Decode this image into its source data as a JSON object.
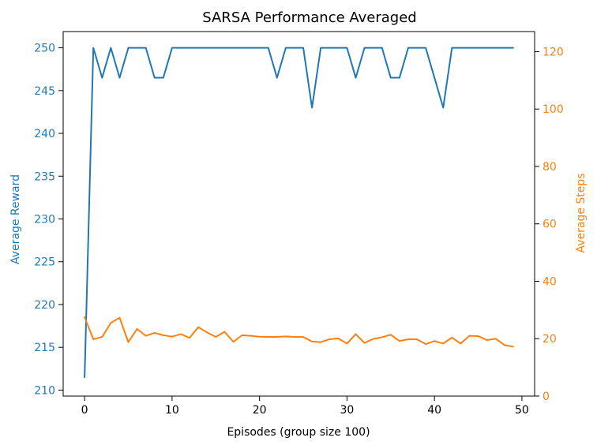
{
  "chart_data": {
    "type": "line",
    "title": "SARSA Performance Averaged",
    "xlabel": "Episodes (group size 100)",
    "ylabel_left": "Average Reward",
    "ylabel_right": "Average Steps",
    "x": [
      0,
      1,
      2,
      3,
      4,
      5,
      6,
      7,
      8,
      9,
      10,
      11,
      12,
      13,
      14,
      15,
      16,
      17,
      18,
      19,
      20,
      21,
      22,
      23,
      24,
      25,
      26,
      27,
      28,
      29,
      30,
      31,
      32,
      33,
      34,
      35,
      36,
      37,
      38,
      39,
      40,
      41,
      42,
      43,
      44,
      45,
      46,
      47,
      48,
      49
    ],
    "x_ticks": [
      0,
      10,
      20,
      30,
      40,
      50
    ],
    "xlim": [
      -2.45,
      51.45
    ],
    "left_axis": {
      "ylim": [
        209.3,
        251.9
      ],
      "ticks": [
        210,
        215,
        220,
        225,
        230,
        235,
        240,
        245,
        250
      ],
      "color": "#1f77b4"
    },
    "right_axis": {
      "ylim": [
        0,
        127
      ],
      "ticks": [
        0,
        20,
        40,
        60,
        80,
        100,
        120
      ],
      "color": "#ff7f0e"
    },
    "series": [
      {
        "name": "Average Reward",
        "axis": "left",
        "color": "#1f77b4",
        "values": [
          211.5,
          250,
          246.5,
          250,
          246.5,
          250,
          250,
          250,
          246.5,
          246.5,
          250,
          250,
          250,
          250,
          250,
          250,
          250,
          250,
          250,
          250,
          250,
          250,
          246.5,
          250,
          250,
          250,
          243,
          250,
          250,
          250,
          250,
          246.5,
          250,
          250,
          250,
          246.5,
          246.5,
          250,
          250,
          250,
          246.5,
          243,
          250,
          250,
          250,
          250,
          250,
          250,
          250,
          250
        ]
      },
      {
        "name": "Average Steps",
        "axis": "right",
        "color": "#ff7f0e",
        "values": [
          27.5,
          19.8,
          20.6,
          25.5,
          27.3,
          18.8,
          23.4,
          21.0,
          22.0,
          21.2,
          20.7,
          21.6,
          20.3,
          24.0,
          22.2,
          20.6,
          22.4,
          18.9,
          21.2,
          21.0,
          20.7,
          20.6,
          20.6,
          20.8,
          20.6,
          20.6,
          19.0,
          18.8,
          19.8,
          20.1,
          18.3,
          21.6,
          18.5,
          19.9,
          20.5,
          21.4,
          19.2,
          19.8,
          19.8,
          18.1,
          19.2,
          18.3,
          20.4,
          18.3,
          21.0,
          20.9,
          19.5,
          20.0,
          17.8,
          17.2
        ]
      }
    ]
  }
}
